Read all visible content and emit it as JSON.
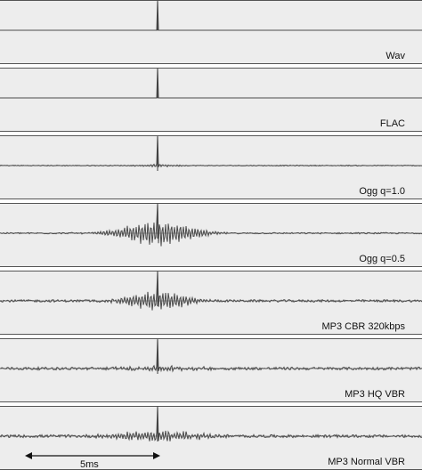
{
  "panels": [
    {
      "label": "Wav",
      "spread": 0,
      "amp": 0,
      "noise": 0,
      "peak": 1.0
    },
    {
      "label": "FLAC",
      "spread": 0,
      "amp": 0,
      "noise": 0,
      "peak": 1.0
    },
    {
      "label": "Ogg q=1.0",
      "spread": 1.5,
      "amp": 0.06,
      "noise": 0.02,
      "peak": 1.0
    },
    {
      "label": "Ogg q=0.5",
      "spread": 3.0,
      "amp": 0.55,
      "noise": 0.03,
      "peak": 1.0
    },
    {
      "label": "MP3 CBR 320kbps",
      "spread": 2.5,
      "amp": 0.45,
      "noise": 0.05,
      "peak": 1.0
    },
    {
      "label": "MP3 HQ VBR",
      "spread": 3.0,
      "amp": 0.1,
      "noise": 0.06,
      "peak": 1.0
    },
    {
      "label": "MP3 Normal VBR",
      "spread": 3.5,
      "amp": 0.25,
      "noise": 0.06,
      "peak": 1.0
    }
  ],
  "scale_bar": {
    "label": "5ms",
    "length_ms": 5
  }
}
